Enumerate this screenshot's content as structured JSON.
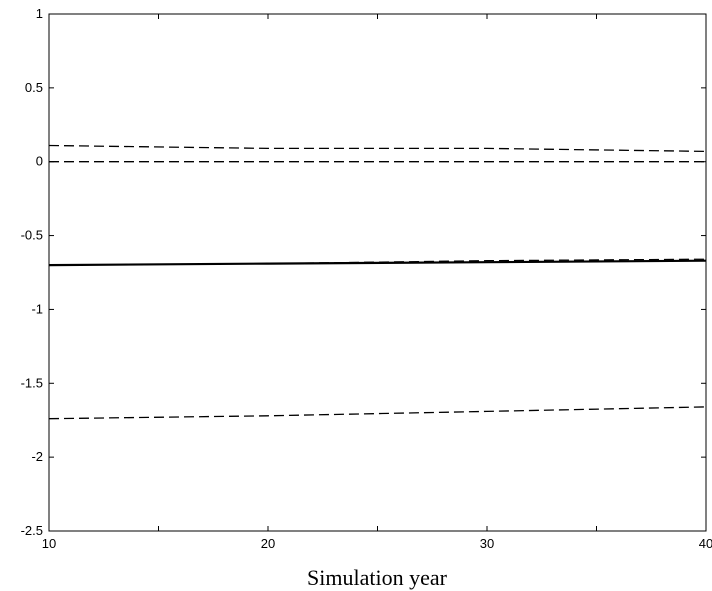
{
  "chart_data": {
    "type": "line",
    "title": "",
    "xlabel": "Simulation year",
    "ylabel": "",
    "xlim": [
      10,
      40
    ],
    "ylim": [
      -2.5,
      1
    ],
    "x_ticks": [
      10,
      20,
      30,
      40
    ],
    "x_tick_labels": [
      "10",
      "20",
      "30",
      "40"
    ],
    "y_ticks": [
      1,
      0.5,
      0,
      -0.5,
      -1,
      -1.5,
      -2,
      -2.5
    ],
    "y_tick_labels": [
      "1",
      "0.5",
      "0",
      "-0.5",
      "-1",
      "-1.5",
      "-2",
      "-2.5"
    ],
    "grid": false,
    "legend": false,
    "series": [
      {
        "x": [
          10,
          20,
          30,
          40
        ],
        "values": [
          0.11,
          0.09,
          0.09,
          0.07
        ],
        "style": "dashed",
        "color": "#000000"
      },
      {
        "x": [
          10,
          20,
          30,
          40
        ],
        "values": [
          0.0,
          0.0,
          0.0,
          0.0
        ],
        "style": "dashed",
        "color": "#000000"
      },
      {
        "x": [
          10,
          20,
          30,
          40
        ],
        "values": [
          -0.7,
          -0.69,
          -0.68,
          -0.67
        ],
        "style": "solid-thick",
        "color": "#000000"
      },
      {
        "x": [
          10,
          20,
          30,
          40
        ],
        "values": [
          -0.7,
          -0.69,
          -0.67,
          -0.66
        ],
        "style": "dashed",
        "color": "#000000"
      },
      {
        "x": [
          10,
          20,
          30,
          40
        ],
        "values": [
          -1.74,
          -1.72,
          -1.69,
          -1.66
        ],
        "style": "dashed",
        "color": "#000000"
      }
    ]
  }
}
